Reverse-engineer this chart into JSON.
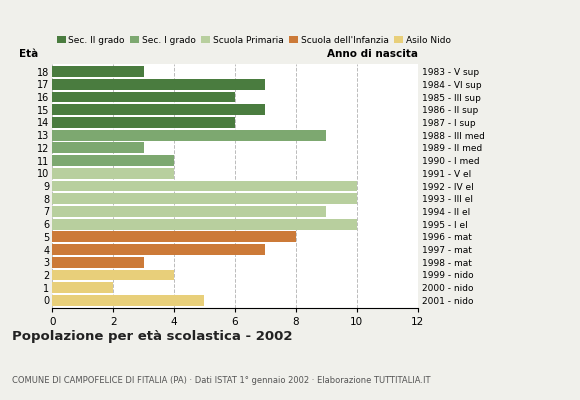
{
  "ages": [
    18,
    17,
    16,
    15,
    14,
    13,
    12,
    11,
    10,
    9,
    8,
    7,
    6,
    5,
    4,
    3,
    2,
    1,
    0
  ],
  "values": [
    3,
    7,
    6,
    7,
    6,
    9,
    3,
    4,
    4,
    10,
    10,
    9,
    10,
    8,
    7,
    3,
    4,
    2,
    5
  ],
  "colors": [
    "#4a7c3f",
    "#4a7c3f",
    "#4a7c3f",
    "#4a7c3f",
    "#4a7c3f",
    "#7da870",
    "#7da870",
    "#7da870",
    "#b8cf9e",
    "#b8cf9e",
    "#b8cf9e",
    "#b8cf9e",
    "#b8cf9e",
    "#cc7a38",
    "#cc7a38",
    "#cc7a38",
    "#e8cf7a",
    "#e8cf7a",
    "#e8cf7a"
  ],
  "right_labels": [
    "1983 - V sup",
    "1984 - VI sup",
    "1985 - III sup",
    "1986 - II sup",
    "1987 - I sup",
    "1988 - III med",
    "1989 - II med",
    "1990 - I med",
    "1991 - V el",
    "1992 - IV el",
    "1993 - III el",
    "1994 - II el",
    "1995 - I el",
    "1996 - mat",
    "1997 - mat",
    "1998 - mat",
    "1999 - nido",
    "2000 - nido",
    "2001 - nido"
  ],
  "legend_labels": [
    "Sec. II grado",
    "Sec. I grado",
    "Scuola Primaria",
    "Scuola dell'Infanzia",
    "Asilo Nido"
  ],
  "legend_colors": [
    "#4a7c3f",
    "#7da870",
    "#b8cf9e",
    "#cc7a38",
    "#e8cf7a"
  ],
  "xlabel_left": "Età",
  "xlabel_right": "Anno di nascita",
  "xlim": [
    0,
    12
  ],
  "xticks": [
    0,
    2,
    4,
    6,
    8,
    10,
    12
  ],
  "title": "Popolazione per età scolastica - 2002",
  "subtitle": "COMUNE DI CAMPOFELICE DI FITALIA (PA) · Dati ISTAT 1° gennaio 2002 · Elaborazione TUTTITALIA.IT",
  "bar_height": 0.85,
  "bg_color": "#f0f0eb",
  "plot_bg": "#ffffff"
}
